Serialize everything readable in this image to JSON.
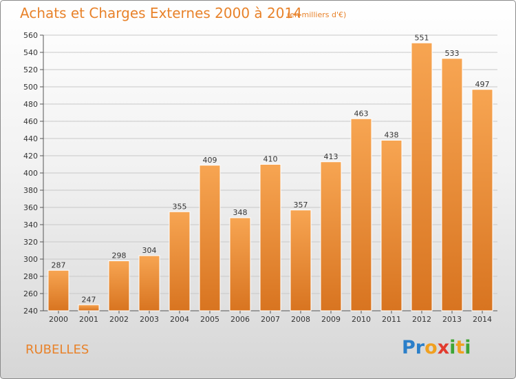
{
  "header": {
    "title": "Achats et Charges Externes 2000 à 2014",
    "subtitle": "(en milliers d'€)"
  },
  "footer": {
    "commune": "RUBELLES",
    "logo_text": "Proxiti",
    "logo_letters": [
      {
        "ch": "P",
        "color": "#2b7fc9"
      },
      {
        "ch": "r",
        "color": "#2b7fc9"
      },
      {
        "ch": "o",
        "color": "#f0a020"
      },
      {
        "ch": "x",
        "color": "#e23b2e"
      },
      {
        "ch": "i",
        "color": "#3fa535"
      },
      {
        "ch": "t",
        "color": "#f0a020"
      },
      {
        "ch": "i",
        "color": "#3fa535"
      }
    ]
  },
  "colors": {
    "bar_light": "#f7a552",
    "bar_dark": "#d87420",
    "text_accent": "#e8822a"
  },
  "chart_data": {
    "type": "bar",
    "categories": [
      "2000",
      "2001",
      "2002",
      "2003",
      "2004",
      "2005",
      "2006",
      "2007",
      "2008",
      "2009",
      "2010",
      "2011",
      "2012",
      "2013",
      "2014"
    ],
    "values": [
      287,
      247,
      298,
      304,
      355,
      409,
      348,
      410,
      357,
      413,
      463,
      438,
      551,
      533,
      497
    ],
    "ylim": [
      240,
      560
    ],
    "yticks": [
      240,
      260,
      280,
      300,
      320,
      340,
      360,
      380,
      400,
      420,
      440,
      460,
      480,
      500,
      520,
      540,
      560
    ],
    "grid": true,
    "data_labels": true
  }
}
